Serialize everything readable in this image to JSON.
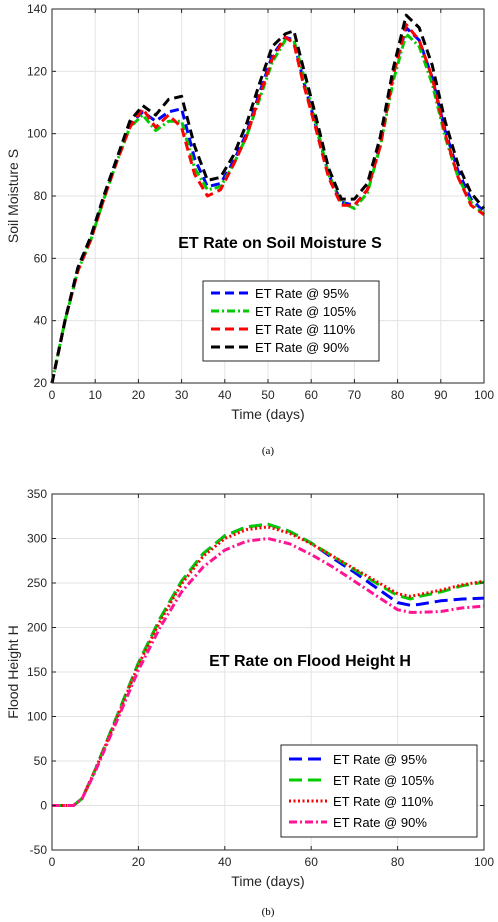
{
  "chart_data": [
    {
      "type": "line",
      "inner_title": "ET Rate on Soil Moisture S",
      "xlabel": "Time (days)",
      "ylabel": "Soil Moisture S",
      "caption": "(a)",
      "xlim": [
        0,
        100
      ],
      "ylim": [
        20,
        140
      ],
      "xticks": [
        "0",
        "10",
        "20",
        "30",
        "40",
        "50",
        "60",
        "70",
        "80",
        "90",
        "100"
      ],
      "yticks": [
        "20",
        "40",
        "60",
        "80",
        "100",
        "120",
        "140"
      ],
      "grid": true,
      "legend_position": "lower-center",
      "x": [
        0,
        3,
        6,
        9,
        12,
        15,
        18,
        21,
        24,
        27,
        30,
        33,
        36,
        39,
        42,
        45,
        48,
        51,
        54,
        56,
        58,
        61,
        64,
        67,
        70,
        73,
        76,
        79,
        82,
        85,
        88,
        91,
        94,
        97,
        100
      ],
      "series": [
        {
          "name": "ET Rate @ 95%",
          "color": "#0000ff",
          "dash": "dash",
          "values": [
            20,
            40,
            57,
            67,
            80,
            92,
            103,
            107,
            104,
            107,
            108,
            92,
            83,
            84,
            91,
            100,
            113,
            125,
            131,
            130,
            118,
            103,
            87,
            78,
            77,
            82,
            97,
            119,
            134,
            130,
            118,
            101,
            88,
            79,
            75
          ]
        },
        {
          "name": "ET Rate @ 105%",
          "color": "#00cc00",
          "dash": "dashdot",
          "values": [
            20,
            40,
            56,
            66,
            79,
            91,
            102,
            106,
            101,
            104,
            104,
            89,
            82,
            83,
            90,
            99,
            111,
            123,
            130,
            130,
            120,
            104,
            87,
            78,
            76,
            81,
            96,
            117,
            132,
            128,
            116,
            99,
            86,
            78,
            74
          ]
        },
        {
          "name": "ET Rate @ 110%",
          "color": "#ff0000",
          "dash": "dash",
          "values": [
            20,
            40,
            56,
            66,
            79,
            91,
            102,
            108,
            102,
            106,
            102,
            87,
            80,
            82,
            90,
            99,
            112,
            124,
            131,
            129,
            117,
            102,
            86,
            77,
            77,
            82,
            96,
            119,
            135,
            130,
            118,
            100,
            86,
            77,
            74
          ]
        },
        {
          "name": "ET Rate @ 90%",
          "color": "#000000",
          "dash": "dash",
          "values": [
            20,
            40,
            57,
            67,
            80,
            92,
            104,
            109,
            106,
            111,
            112,
            96,
            85,
            86,
            93,
            103,
            116,
            128,
            132,
            133,
            122,
            106,
            89,
            79,
            79,
            84,
            99,
            121,
            138,
            134,
            122,
            104,
            90,
            81,
            76
          ]
        }
      ]
    },
    {
      "type": "line",
      "inner_title": "ET Rate on Flood Height H",
      "xlabel": "Time (days)",
      "ylabel": "Flood Height H",
      "caption": "(b)",
      "xlim": [
        0,
        100
      ],
      "ylim": [
        -50,
        350
      ],
      "xticks": [
        "0",
        "20",
        "40",
        "60",
        "80",
        "100"
      ],
      "yticks": [
        "-50",
        "0",
        "50",
        "100",
        "150",
        "200",
        "250",
        "300",
        "350"
      ],
      "grid": true,
      "legend_position": "bottom-right",
      "x": [
        0,
        5,
        7,
        10,
        15,
        20,
        25,
        30,
        35,
        40,
        45,
        50,
        55,
        60,
        65,
        70,
        75,
        80,
        83,
        85,
        90,
        95,
        100
      ],
      "series": [
        {
          "name": "ET Rate @ 95%",
          "color": "#0000ff",
          "dash": "longdash",
          "values": [
            0,
            0,
            8,
            40,
            100,
            160,
            210,
            252,
            283,
            303,
            313,
            316,
            308,
            295,
            278,
            262,
            245,
            228,
            225,
            226,
            230,
            232,
            233
          ]
        },
        {
          "name": "ET Rate @ 105%",
          "color": "#00cc00",
          "dash": "longdash",
          "values": [
            0,
            0,
            8,
            40,
            100,
            160,
            210,
            252,
            283,
            303,
            313,
            316,
            308,
            295,
            280,
            265,
            250,
            236,
            232,
            235,
            240,
            247,
            251
          ]
        },
        {
          "name": "ET Rate @ 110%",
          "color": "#ff0000",
          "dash": "dot",
          "values": [
            0,
            0,
            8,
            40,
            98,
            158,
            207,
            249,
            280,
            300,
            310,
            313,
            306,
            294,
            280,
            266,
            252,
            238,
            235,
            237,
            242,
            248,
            252
          ]
        },
        {
          "name": "ET Rate @ 90%",
          "color": "#ff1493",
          "dash": "dashdot",
          "values": [
            0,
            0,
            8,
            38,
            95,
            152,
            200,
            240,
            268,
            287,
            297,
            300,
            294,
            282,
            268,
            252,
            236,
            220,
            217,
            217,
            218,
            222,
            224
          ]
        }
      ]
    }
  ]
}
